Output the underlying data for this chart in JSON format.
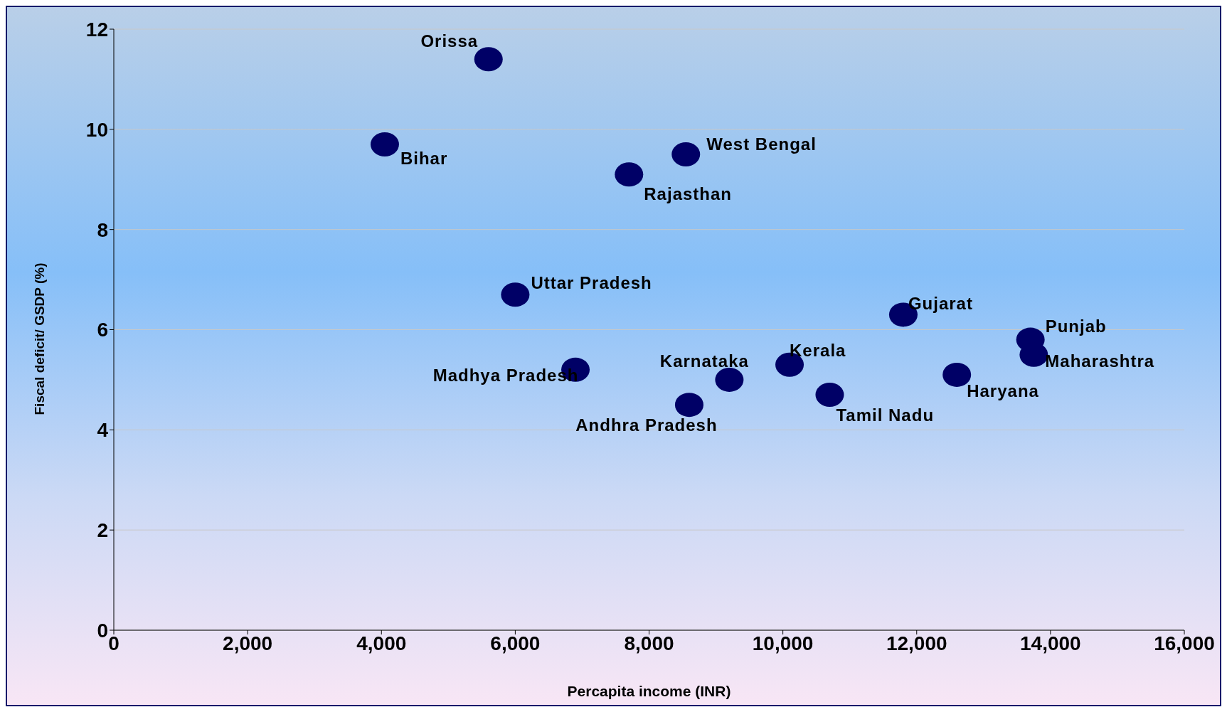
{
  "chart_data": {
    "type": "scatter",
    "xlabel": "Percapita income (INR)",
    "ylabel": "Fiscal deficit/ GSDP (%)",
    "x": [
      5600,
      4050,
      8550,
      7700,
      6000,
      6900,
      8600,
      9200,
      10100,
      10700,
      11800,
      12600,
      13700,
      13750
    ],
    "values": [
      11.4,
      9.7,
      9.5,
      9.1,
      6.7,
      5.2,
      4.5,
      5.0,
      5.3,
      4.7,
      6.3,
      5.1,
      5.8,
      5.5
    ],
    "color": "#000066",
    "marker": "circle",
    "grid": "y",
    "legend": false,
    "xlim": [
      0,
      16000
    ],
    "xticks": [
      {
        "value": 0,
        "label": "0"
      },
      {
        "value": 2000,
        "label": "2,000"
      },
      {
        "value": 4000,
        "label": "4,000"
      },
      {
        "value": 6000,
        "label": "6,000"
      },
      {
        "value": 8000,
        "label": "8,000"
      },
      {
        "value": 10000,
        "label": "10,000"
      },
      {
        "value": 12000,
        "label": "12,000"
      },
      {
        "value": 14000,
        "label": "14,000"
      },
      {
        "value": 16000,
        "label": "16,000"
      }
    ],
    "ylim": [
      0,
      12
    ],
    "yticks": [
      0,
      2,
      4,
      6,
      8,
      10,
      12
    ],
    "annotations": [
      {
        "text": "Orissa",
        "x": 5600,
        "y": 11.4
      },
      {
        "text": "Bihar",
        "x": 4050,
        "y": 9.7
      },
      {
        "text": "West Bengal",
        "x": 8550,
        "y": 9.5
      },
      {
        "text": "Rajasthan",
        "x": 7700,
        "y": 9.1
      },
      {
        "text": "Uttar Pradesh",
        "x": 6000,
        "y": 6.7
      },
      {
        "text": "Madhya Pradesh",
        "x": 6900,
        "y": 5.2
      },
      {
        "text": "Andhra Pradesh",
        "x": 8600,
        "y": 4.5
      },
      {
        "text": "Karnataka",
        "x": 9200,
        "y": 5.0
      },
      {
        "text": "Kerala",
        "x": 10100,
        "y": 5.3
      },
      {
        "text": "Tamil Nadu",
        "x": 10700,
        "y": 4.7
      },
      {
        "text": "Gujarat",
        "x": 11800,
        "y": 6.3
      },
      {
        "text": "Haryana",
        "x": 12600,
        "y": 5.1
      },
      {
        "text": "Punjab",
        "x": 13700,
        "y": 5.8
      },
      {
        "text": "Maharashtra",
        "x": 13750,
        "y": 5.5
      }
    ]
  }
}
